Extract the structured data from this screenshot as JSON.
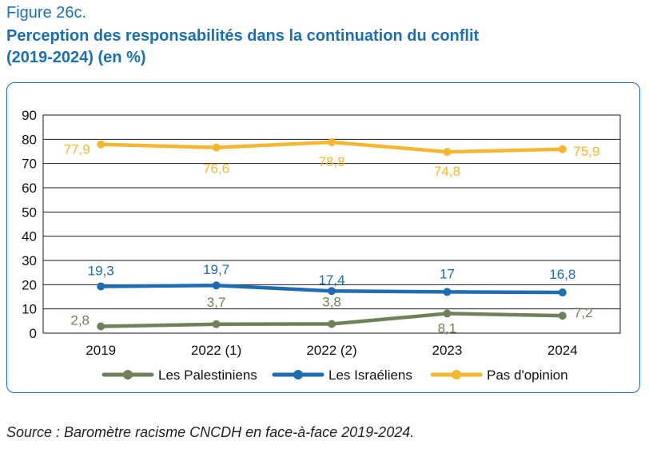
{
  "figure_label": "Figure 26c.",
  "title_line1": "Perception des responsabilités dans la continuation du conflit",
  "title_line2": "(2019-2024) (en %)",
  "source": "Source : Baromètre racisme CNCDH en face-à-face 2019-2024.",
  "colors": {
    "title": "#1a6fb5",
    "frame": "#1a6fb5"
  },
  "chart_data": {
    "type": "line",
    "categories": [
      "2019",
      "2022 (1)",
      "2022 (2)",
      "2023",
      "2024"
    ],
    "ylim": [
      0,
      90
    ],
    "yticks": [
      "0",
      "10",
      "20",
      "30",
      "40",
      "50",
      "60",
      "70",
      "80",
      "90"
    ],
    "grid": true,
    "legend_position": "bottom",
    "series": [
      {
        "name": "Les Palestiniens",
        "color": "#6e8259",
        "values": [
          2.8,
          3.7,
          3.8,
          8.1,
          7.2
        ],
        "labels": [
          "2,8",
          "3,7",
          "3,8",
          "8,1",
          "7,2"
        ]
      },
      {
        "name": "Les Israéliens",
        "color": "#1e6db3",
        "values": [
          19.3,
          19.7,
          17.4,
          17,
          16.8
        ],
        "labels": [
          "19,3",
          "19,7",
          "17,4",
          "17",
          "16,8"
        ]
      },
      {
        "name": "Pas d'opinion",
        "color": "#f5b731",
        "values": [
          77.9,
          76.6,
          78.8,
          74.8,
          75.9
        ],
        "labels": [
          "77,9",
          "76,6",
          "78,8",
          "74,8",
          "75,9"
        ]
      }
    ]
  }
}
